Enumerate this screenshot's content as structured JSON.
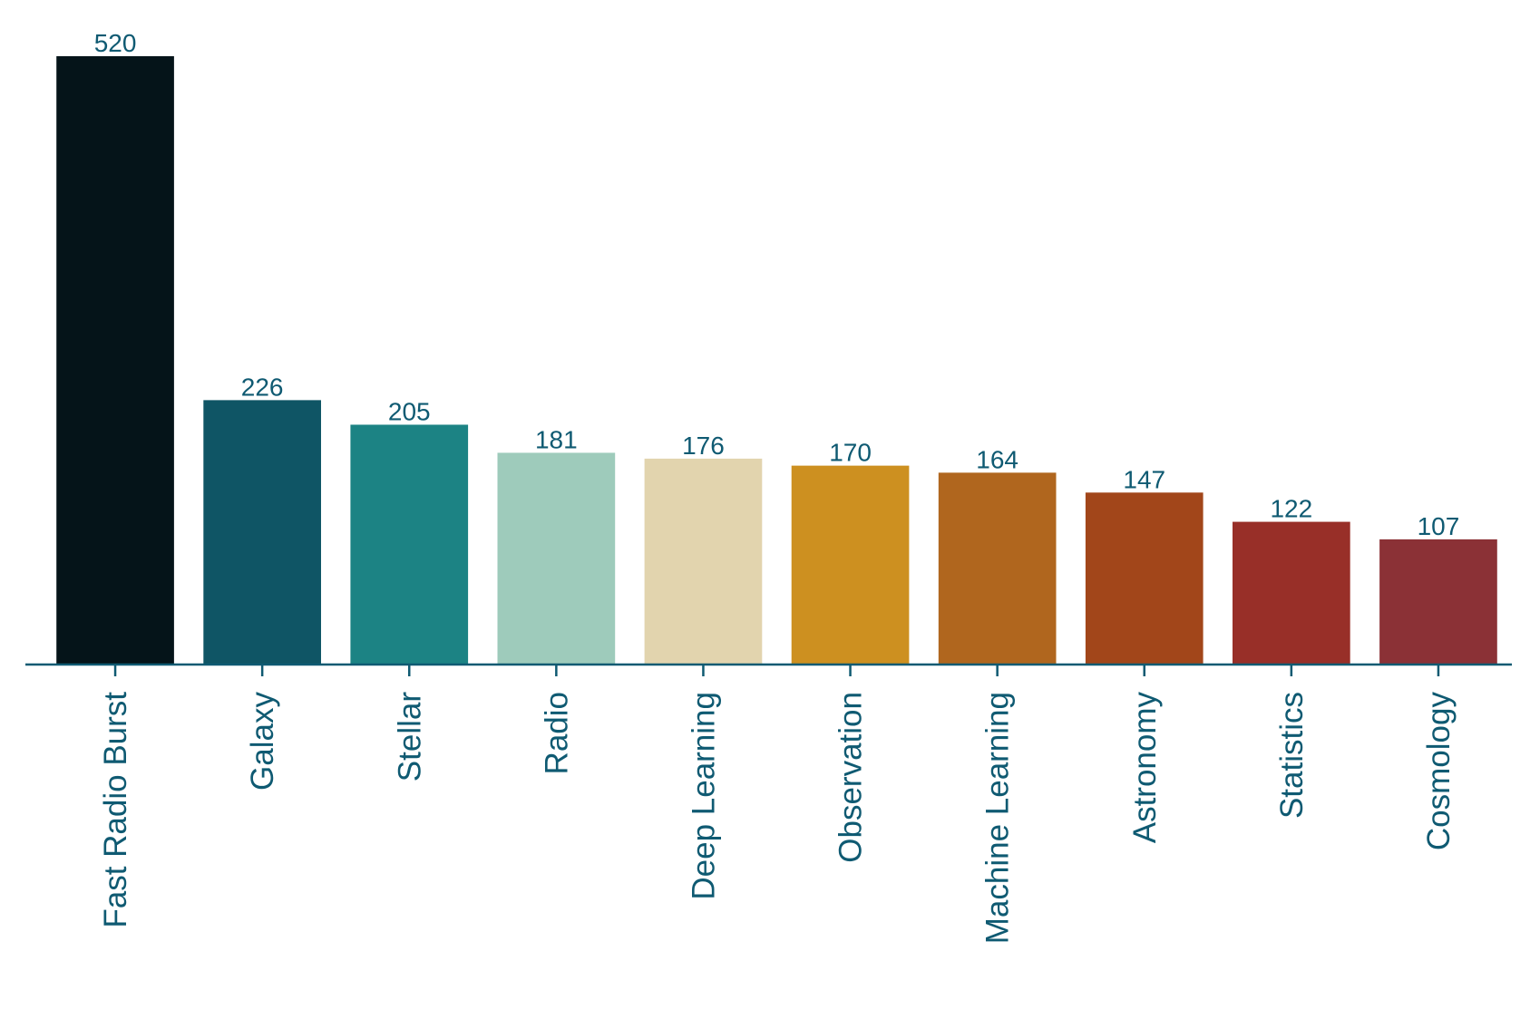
{
  "chart_data": {
    "type": "bar",
    "title": "",
    "xlabel": "",
    "ylabel": "",
    "categories": [
      "Fast Radio Burst",
      "Galaxy",
      "Stellar",
      "Radio",
      "Deep Learning",
      "Observation",
      "Machine Learning",
      "Astronomy",
      "Statistics",
      "Cosmology"
    ],
    "values": [
      520,
      226,
      205,
      181,
      176,
      170,
      164,
      147,
      122,
      107
    ],
    "colors": [
      "#051419",
      "#0f5565",
      "#1c8384",
      "#9ecbbb",
      "#e2d4ae",
      "#cd9020",
      "#b0661e",
      "#a2461a",
      "#982f28",
      "#8b3136"
    ],
    "axis_color": "#0f5a72",
    "label_color": "#0f5a72",
    "ylim": [
      0,
      520
    ],
    "grid": false,
    "y_axis_visible": false,
    "data_labels": true
  }
}
